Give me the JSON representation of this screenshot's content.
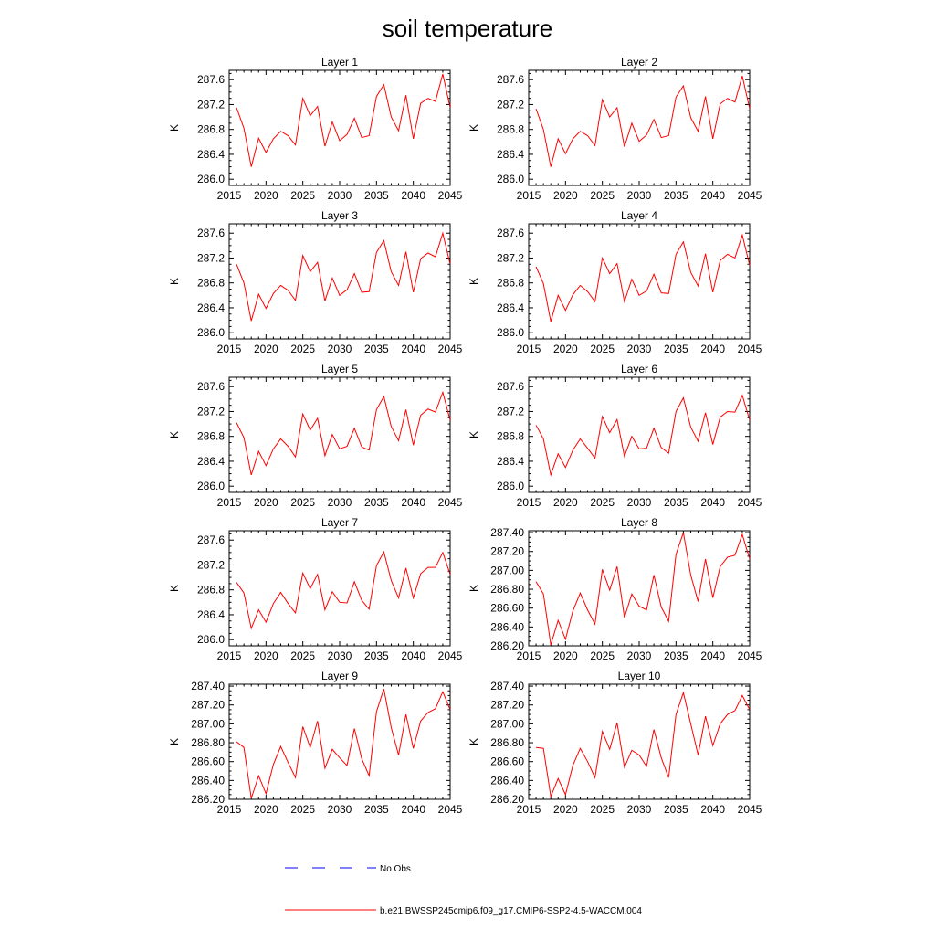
{
  "title": "soil temperature",
  "colors": {
    "model": "#ff0000",
    "obs": "#0000ff",
    "axis": "#000000"
  },
  "legend": {
    "obs_label": "No Obs",
    "model_label": "b.e21.BWSSP245cmip6.f09_g17.CMIP6-SSP2-4.5-WACCM.004"
  },
  "chart_data": [
    {
      "type": "line",
      "title": "Layer 1",
      "xlabel": "",
      "ylabel": "K",
      "xlim": [
        2015,
        2045
      ],
      "ylim": [
        285.9,
        287.75
      ],
      "xticks": [
        2015,
        2020,
        2025,
        2030,
        2035,
        2040,
        2045
      ],
      "yticks": [
        "286.0",
        "286.4",
        "286.8",
        "287.2",
        "287.6"
      ],
      "x": [
        2016,
        2017,
        2018,
        2019,
        2020,
        2021,
        2022,
        2023,
        2024,
        2025,
        2026,
        2027,
        2028,
        2029,
        2030,
        2031,
        2032,
        2033,
        2034,
        2035,
        2036,
        2037,
        2038,
        2039,
        2040,
        2041,
        2042,
        2043,
        2044,
        2045
      ],
      "series": [
        {
          "values": [
            287.15,
            286.82,
            286.2,
            286.66,
            286.43,
            286.65,
            286.77,
            286.7,
            286.55,
            287.3,
            287.02,
            287.17,
            286.53,
            286.92,
            286.62,
            286.72,
            286.98,
            286.67,
            286.7,
            287.33,
            287.52,
            287.0,
            286.78,
            287.35,
            286.65,
            287.22,
            287.3,
            287.25,
            287.69,
            287.15
          ]
        }
      ]
    },
    {
      "type": "line",
      "title": "Layer 2",
      "xlabel": "",
      "ylabel": "K",
      "xlim": [
        2015,
        2045
      ],
      "ylim": [
        285.9,
        287.75
      ],
      "xticks": [
        2015,
        2020,
        2025,
        2030,
        2035,
        2040,
        2045
      ],
      "yticks": [
        "286.0",
        "286.4",
        "286.8",
        "287.2",
        "287.6"
      ],
      "x": [
        2016,
        2017,
        2018,
        2019,
        2020,
        2021,
        2022,
        2023,
        2024,
        2025,
        2026,
        2027,
        2028,
        2029,
        2030,
        2031,
        2032,
        2033,
        2034,
        2035,
        2036,
        2037,
        2038,
        2039,
        2040,
        2041,
        2042,
        2043,
        2044,
        2045
      ],
      "series": [
        {
          "values": [
            287.13,
            286.8,
            286.2,
            286.65,
            286.41,
            286.65,
            286.77,
            286.7,
            286.54,
            287.28,
            287.0,
            287.15,
            286.52,
            286.9,
            286.61,
            286.71,
            286.96,
            286.67,
            286.7,
            287.32,
            287.5,
            286.99,
            286.77,
            287.33,
            286.65,
            287.21,
            287.3,
            287.24,
            287.66,
            287.13
          ]
        }
      ]
    },
    {
      "type": "line",
      "title": "Layer 3",
      "xlabel": "",
      "ylabel": "K",
      "xlim": [
        2015,
        2045
      ],
      "ylim": [
        285.9,
        287.75
      ],
      "xticks": [
        2015,
        2020,
        2025,
        2030,
        2035,
        2040,
        2045
      ],
      "yticks": [
        "286.0",
        "286.4",
        "286.8",
        "287.2",
        "287.6"
      ],
      "x": [
        2016,
        2017,
        2018,
        2019,
        2020,
        2021,
        2022,
        2023,
        2024,
        2025,
        2026,
        2027,
        2028,
        2029,
        2030,
        2031,
        2032,
        2033,
        2034,
        2035,
        2036,
        2037,
        2038,
        2039,
        2040,
        2041,
        2042,
        2043,
        2044,
        2045
      ],
      "series": [
        {
          "values": [
            287.1,
            286.8,
            286.19,
            286.62,
            286.39,
            286.63,
            286.76,
            286.68,
            286.52,
            287.24,
            286.98,
            287.13,
            286.51,
            286.88,
            286.6,
            286.69,
            286.95,
            286.65,
            286.66,
            287.29,
            287.48,
            286.98,
            286.76,
            287.3,
            286.65,
            287.19,
            287.28,
            287.22,
            287.6,
            287.1
          ]
        }
      ]
    },
    {
      "type": "line",
      "title": "Layer 4",
      "xlabel": "",
      "ylabel": "K",
      "xlim": [
        2015,
        2045
      ],
      "ylim": [
        285.9,
        287.75
      ],
      "xticks": [
        2015,
        2020,
        2025,
        2030,
        2035,
        2040,
        2045
      ],
      "yticks": [
        "286.0",
        "286.4",
        "286.8",
        "287.2",
        "287.6"
      ],
      "x": [
        2016,
        2017,
        2018,
        2019,
        2020,
        2021,
        2022,
        2023,
        2024,
        2025,
        2026,
        2027,
        2028,
        2029,
        2030,
        2031,
        2032,
        2033,
        2034,
        2035,
        2036,
        2037,
        2038,
        2039,
        2040,
        2041,
        2042,
        2043,
        2044,
        2045
      ],
      "series": [
        {
          "values": [
            287.06,
            286.79,
            286.18,
            286.6,
            286.36,
            286.61,
            286.76,
            286.66,
            286.5,
            287.2,
            286.95,
            287.11,
            286.5,
            286.86,
            286.6,
            286.67,
            286.94,
            286.64,
            286.63,
            287.26,
            287.46,
            286.97,
            286.75,
            287.27,
            286.65,
            287.16,
            287.26,
            287.2,
            287.57,
            287.08
          ]
        }
      ]
    },
    {
      "type": "line",
      "title": "Layer 5",
      "xlabel": "",
      "ylabel": "K",
      "xlim": [
        2015,
        2045
      ],
      "ylim": [
        285.9,
        287.75
      ],
      "xticks": [
        2015,
        2020,
        2025,
        2030,
        2035,
        2040,
        2045
      ],
      "yticks": [
        "286.0",
        "286.4",
        "286.8",
        "287.2",
        "287.6"
      ],
      "x": [
        2016,
        2017,
        2018,
        2019,
        2020,
        2021,
        2022,
        2023,
        2024,
        2025,
        2026,
        2027,
        2028,
        2029,
        2030,
        2031,
        2032,
        2033,
        2034,
        2035,
        2036,
        2037,
        2038,
        2039,
        2040,
        2041,
        2042,
        2043,
        2044,
        2045
      ],
      "series": [
        {
          "values": [
            287.02,
            286.78,
            286.18,
            286.56,
            286.33,
            286.6,
            286.76,
            286.64,
            286.47,
            287.16,
            286.9,
            287.09,
            286.49,
            286.83,
            286.6,
            286.64,
            286.93,
            286.63,
            286.58,
            287.23,
            287.44,
            286.96,
            286.73,
            287.23,
            286.66,
            287.14,
            287.24,
            287.19,
            287.51,
            287.06
          ]
        }
      ]
    },
    {
      "type": "line",
      "title": "Layer 6",
      "xlabel": "",
      "ylabel": "K",
      "xlim": [
        2015,
        2045
      ],
      "ylim": [
        285.9,
        287.75
      ],
      "xticks": [
        2015,
        2020,
        2025,
        2030,
        2035,
        2040,
        2045
      ],
      "yticks": [
        "286.0",
        "286.4",
        "286.8",
        "287.2",
        "287.6"
      ],
      "x": [
        2016,
        2017,
        2018,
        2019,
        2020,
        2021,
        2022,
        2023,
        2024,
        2025,
        2026,
        2027,
        2028,
        2029,
        2030,
        2031,
        2032,
        2033,
        2034,
        2035,
        2036,
        2037,
        2038,
        2039,
        2040,
        2041,
        2042,
        2043,
        2044,
        2045
      ],
      "series": [
        {
          "values": [
            286.98,
            286.76,
            286.18,
            286.52,
            286.3,
            286.58,
            286.76,
            286.61,
            286.45,
            287.12,
            286.86,
            287.07,
            286.48,
            286.8,
            286.6,
            286.61,
            286.93,
            286.62,
            286.53,
            287.2,
            287.42,
            286.95,
            286.72,
            287.18,
            286.67,
            287.11,
            287.2,
            287.19,
            287.46,
            287.06
          ]
        }
      ]
    },
    {
      "type": "line",
      "title": "Layer 7",
      "xlabel": "",
      "ylabel": "K",
      "xlim": [
        2015,
        2045
      ],
      "ylim": [
        285.9,
        287.75
      ],
      "xticks": [
        2015,
        2020,
        2025,
        2030,
        2035,
        2040,
        2045
      ],
      "yticks": [
        "286.0",
        "286.4",
        "286.8",
        "287.2",
        "287.6"
      ],
      "x": [
        2016,
        2017,
        2018,
        2019,
        2020,
        2021,
        2022,
        2023,
        2024,
        2025,
        2026,
        2027,
        2028,
        2029,
        2030,
        2031,
        2032,
        2033,
        2034,
        2035,
        2036,
        2037,
        2038,
        2039,
        2040,
        2041,
        2042,
        2043,
        2044,
        2045
      ],
      "series": [
        {
          "values": [
            286.92,
            286.75,
            286.18,
            286.48,
            286.28,
            286.58,
            286.76,
            286.58,
            286.43,
            287.07,
            286.82,
            287.05,
            286.48,
            286.77,
            286.6,
            286.59,
            286.93,
            286.63,
            286.49,
            287.19,
            287.41,
            286.95,
            286.67,
            287.15,
            286.67,
            287.06,
            287.16,
            287.16,
            287.4,
            287.05
          ]
        }
      ]
    },
    {
      "type": "line",
      "title": "Layer 8",
      "xlabel": "",
      "ylabel": "K",
      "xlim": [
        2015,
        2045
      ],
      "ylim": [
        286.2,
        287.42
      ],
      "xticks": [
        2015,
        2020,
        2025,
        2030,
        2035,
        2040,
        2045
      ],
      "yticks": [
        "286.20",
        "286.40",
        "286.60",
        "286.80",
        "287.00",
        "287.20",
        "287.40"
      ],
      "x": [
        2016,
        2017,
        2018,
        2019,
        2020,
        2021,
        2022,
        2023,
        2024,
        2025,
        2026,
        2027,
        2028,
        2029,
        2030,
        2031,
        2032,
        2033,
        2034,
        2035,
        2036,
        2037,
        2038,
        2039,
        2040,
        2041,
        2042,
        2043,
        2044,
        2045
      ],
      "series": [
        {
          "values": [
            286.88,
            286.75,
            286.21,
            286.47,
            286.27,
            286.57,
            286.76,
            286.58,
            286.43,
            287.01,
            286.79,
            287.04,
            286.5,
            286.75,
            286.62,
            286.58,
            286.95,
            286.61,
            286.46,
            287.17,
            287.4,
            286.95,
            286.67,
            287.12,
            286.71,
            287.04,
            287.14,
            287.16,
            287.38,
            287.12
          ]
        }
      ]
    },
    {
      "type": "line",
      "title": "Layer 9",
      "xlabel": "",
      "ylabel": "K",
      "xlim": [
        2015,
        2045
      ],
      "ylim": [
        286.2,
        287.42
      ],
      "xticks": [
        2015,
        2020,
        2025,
        2030,
        2035,
        2040,
        2045
      ],
      "yticks": [
        "286.20",
        "286.40",
        "286.60",
        "286.80",
        "287.00",
        "287.20",
        "287.40"
      ],
      "x": [
        2016,
        2017,
        2018,
        2019,
        2020,
        2021,
        2022,
        2023,
        2024,
        2025,
        2026,
        2027,
        2028,
        2029,
        2030,
        2031,
        2032,
        2033,
        2034,
        2035,
        2036,
        2037,
        2038,
        2039,
        2040,
        2041,
        2042,
        2043,
        2044,
        2045
      ],
      "series": [
        {
          "values": [
            286.81,
            286.75,
            286.21,
            286.45,
            286.26,
            286.57,
            286.76,
            286.59,
            286.43,
            286.97,
            286.75,
            287.03,
            286.53,
            286.73,
            286.64,
            286.56,
            286.95,
            286.63,
            286.45,
            287.13,
            287.37,
            286.96,
            286.67,
            287.1,
            286.74,
            287.03,
            287.12,
            287.16,
            287.34,
            287.15
          ]
        }
      ]
    },
    {
      "type": "line",
      "title": "Layer 10",
      "xlabel": "",
      "ylabel": "K",
      "xlim": [
        2015,
        2045
      ],
      "ylim": [
        286.2,
        287.42
      ],
      "xticks": [
        2015,
        2020,
        2025,
        2030,
        2035,
        2040,
        2045
      ],
      "yticks": [
        "286.20",
        "286.40",
        "286.60",
        "286.80",
        "287.00",
        "287.20",
        "287.40"
      ],
      "x": [
        2016,
        2017,
        2018,
        2019,
        2020,
        2021,
        2022,
        2023,
        2024,
        2025,
        2026,
        2027,
        2028,
        2029,
        2030,
        2031,
        2032,
        2033,
        2034,
        2035,
        2036,
        2037,
        2038,
        2039,
        2040,
        2041,
        2042,
        2043,
        2044,
        2045
      ],
      "series": [
        {
          "values": [
            286.75,
            286.74,
            286.23,
            286.42,
            286.25,
            286.56,
            286.74,
            286.6,
            286.43,
            286.92,
            286.73,
            287.01,
            286.54,
            286.72,
            286.67,
            286.55,
            286.94,
            286.64,
            286.43,
            287.1,
            287.33,
            287.0,
            286.67,
            287.08,
            286.77,
            287.0,
            287.1,
            287.14,
            287.3,
            287.15
          ]
        }
      ]
    }
  ]
}
